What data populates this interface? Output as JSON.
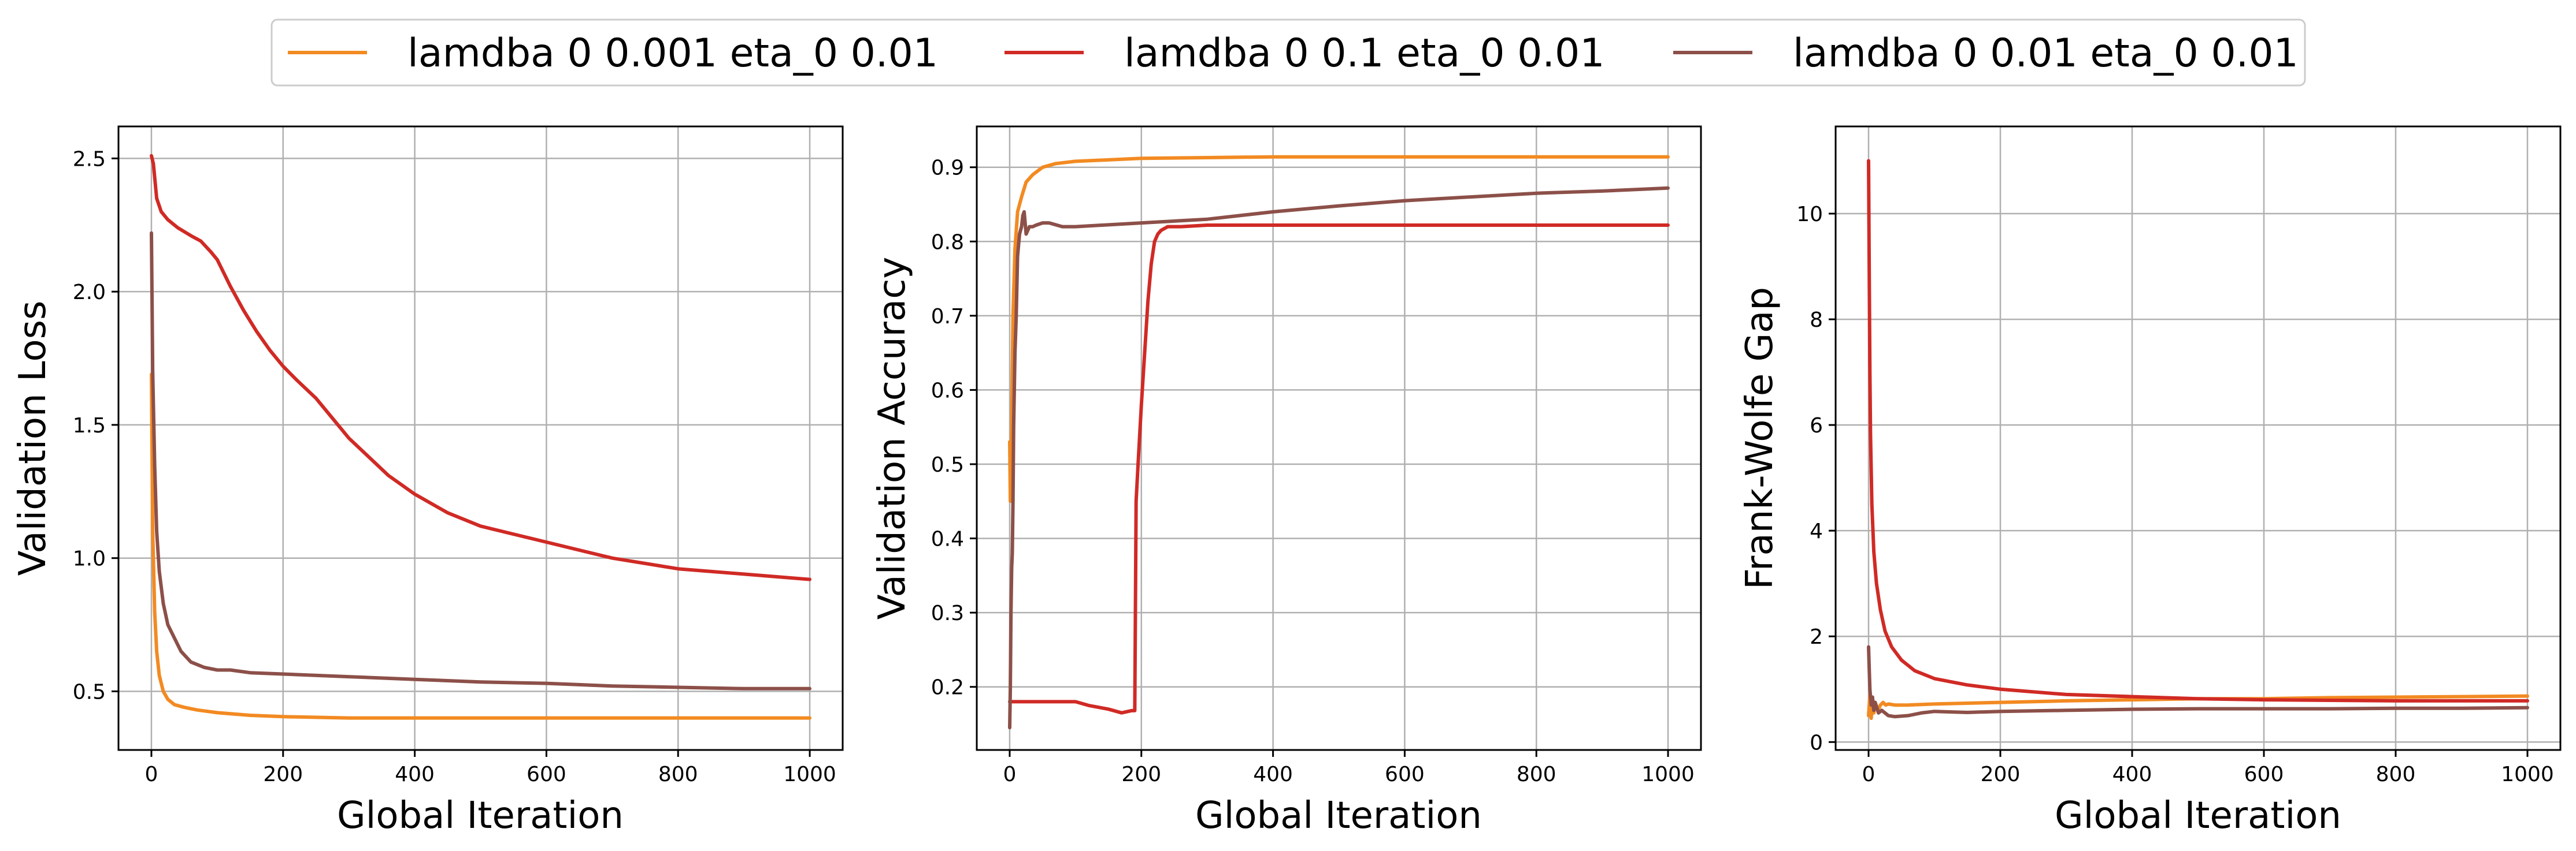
{
  "legend": {
    "placement": "top-center",
    "entries": [
      {
        "label": "lamdba 0 0.001 eta_0 0.01",
        "color": "#f28a22"
      },
      {
        "label": "lamdba 0 0.1 eta_0 0.01",
        "color": "#d02a25"
      },
      {
        "label": "lamdba 0 0.01 eta_0 0.01",
        "color": "#8c5049"
      }
    ]
  },
  "chart_data": [
    {
      "type": "line",
      "xlabel": "Global Iteration",
      "ylabel": "Validation Loss",
      "xlim": [
        -50,
        1050
      ],
      "ylim": [
        0.28,
        2.62
      ],
      "xticks": [
        0,
        200,
        400,
        600,
        800,
        1000
      ],
      "yticks": [
        0.5,
        1.0,
        1.5,
        2.0,
        2.5
      ],
      "xtick_labels": [
        "0",
        "200",
        "400",
        "600",
        "800",
        "1000"
      ],
      "ytick_labels": [
        "0.5",
        "1.0",
        "1.5",
        "2.0",
        "2.5"
      ],
      "grid": true,
      "series": [
        {
          "name": "lamdba 0 0.001 eta_0 0.01",
          "color": "#f28a22",
          "x": [
            0,
            2,
            5,
            8,
            12,
            18,
            25,
            35,
            50,
            70,
            100,
            150,
            200,
            300,
            400,
            500,
            600,
            700,
            800,
            900,
            1000
          ],
          "y": [
            1.69,
            1.1,
            0.8,
            0.65,
            0.56,
            0.5,
            0.47,
            0.45,
            0.44,
            0.43,
            0.42,
            0.41,
            0.405,
            0.4,
            0.4,
            0.4,
            0.4,
            0.4,
            0.4,
            0.4,
            0.4
          ]
        },
        {
          "name": "lamdba 0 0.1 eta_0 0.01",
          "color": "#d02a25",
          "x": [
            0,
            3,
            8,
            15,
            25,
            40,
            60,
            75,
            90,
            100,
            120,
            140,
            160,
            180,
            200,
            220,
            250,
            280,
            300,
            330,
            360,
            400,
            450,
            500,
            600,
            700,
            800,
            900,
            1000
          ],
          "y": [
            2.51,
            2.48,
            2.35,
            2.3,
            2.27,
            2.24,
            2.21,
            2.19,
            2.15,
            2.12,
            2.02,
            1.93,
            1.85,
            1.78,
            1.72,
            1.67,
            1.6,
            1.51,
            1.45,
            1.38,
            1.31,
            1.24,
            1.17,
            1.12,
            1.06,
            1.0,
            0.96,
            0.94,
            0.92
          ]
        },
        {
          "name": "lamdba 0 0.01 eta_0 0.01",
          "color": "#8c5049",
          "x": [
            0,
            2,
            5,
            8,
            12,
            18,
            25,
            35,
            45,
            60,
            80,
            100,
            120,
            150,
            200,
            300,
            400,
            500,
            600,
            700,
            800,
            900,
            1000
          ],
          "y": [
            2.22,
            1.7,
            1.35,
            1.1,
            0.95,
            0.83,
            0.75,
            0.7,
            0.65,
            0.61,
            0.59,
            0.58,
            0.58,
            0.57,
            0.565,
            0.555,
            0.545,
            0.535,
            0.53,
            0.52,
            0.515,
            0.51,
            0.51
          ]
        }
      ]
    },
    {
      "type": "line",
      "xlabel": "Global Iteration",
      "ylabel": "Validation Accuracy",
      "xlim": [
        -50,
        1050
      ],
      "ylim": [
        0.115,
        0.955
      ],
      "xticks": [
        0,
        200,
        400,
        600,
        800,
        1000
      ],
      "yticks": [
        0.2,
        0.3,
        0.4,
        0.5,
        0.6,
        0.7,
        0.8,
        0.9
      ],
      "xtick_labels": [
        "0",
        "200",
        "400",
        "600",
        "800",
        "1000"
      ],
      "ytick_labels": [
        "0.2",
        "0.3",
        "0.4",
        "0.5",
        "0.6",
        "0.7",
        "0.8",
        "0.9"
      ],
      "grid": true,
      "series": [
        {
          "name": "lamdba 0 0.001 eta_0 0.01",
          "color": "#f28a22",
          "x": [
            0,
            1,
            3,
            5,
            8,
            12,
            18,
            25,
            35,
            50,
            70,
            100,
            150,
            200,
            300,
            400,
            500,
            600,
            700,
            800,
            900,
            1000
          ],
          "y": [
            0.53,
            0.45,
            0.55,
            0.7,
            0.79,
            0.84,
            0.86,
            0.88,
            0.89,
            0.9,
            0.905,
            0.908,
            0.91,
            0.912,
            0.913,
            0.914,
            0.914,
            0.914,
            0.914,
            0.914,
            0.914,
            0.914
          ]
        },
        {
          "name": "lamdba 0 0.1 eta_0 0.01",
          "color": "#d02a25",
          "x": [
            0,
            2,
            5,
            10,
            20,
            50,
            80,
            100,
            120,
            150,
            170,
            185,
            190,
            192,
            195,
            200,
            205,
            210,
            215,
            220,
            225,
            230,
            240,
            260,
            300,
            400,
            600,
            800,
            1000
          ],
          "y": [
            0.18,
            0.18,
            0.18,
            0.18,
            0.18,
            0.18,
            0.18,
            0.18,
            0.175,
            0.17,
            0.165,
            0.168,
            0.168,
            0.45,
            0.5,
            0.58,
            0.65,
            0.72,
            0.77,
            0.8,
            0.81,
            0.815,
            0.82,
            0.82,
            0.822,
            0.822,
            0.822,
            0.822,
            0.822
          ]
        },
        {
          "name": "lamdba 0 0.01 eta_0 0.01",
          "color": "#8c5049",
          "x": [
            0,
            1,
            2,
            3,
            4,
            5,
            6,
            8,
            10,
            12,
            15,
            18,
            20,
            22,
            25,
            30,
            35,
            40,
            50,
            60,
            80,
            100,
            200,
            300,
            400,
            500,
            600,
            700,
            800,
            900,
            1000
          ],
          "y": [
            0.145,
            0.2,
            0.3,
            0.36,
            0.38,
            0.45,
            0.55,
            0.65,
            0.7,
            0.78,
            0.81,
            0.82,
            0.835,
            0.84,
            0.81,
            0.82,
            0.82,
            0.822,
            0.825,
            0.825,
            0.82,
            0.82,
            0.825,
            0.83,
            0.84,
            0.848,
            0.855,
            0.86,
            0.865,
            0.868,
            0.872
          ]
        }
      ]
    },
    {
      "type": "line",
      "xlabel": "Global Iteration",
      "ylabel": "Frank-Wolfe Gap",
      "xlim": [
        -50,
        1050
      ],
      "ylim": [
        -0.15,
        11.65
      ],
      "xticks": [
        0,
        200,
        400,
        600,
        800,
        1000
      ],
      "yticks": [
        0,
        2,
        4,
        6,
        8,
        10
      ],
      "xtick_labels": [
        "0",
        "200",
        "400",
        "600",
        "800",
        "1000"
      ],
      "ytick_labels": [
        "0",
        "2",
        "4",
        "6",
        "8",
        "10"
      ],
      "grid": true,
      "series": [
        {
          "name": "lamdba 0 0.001 eta_0 0.01",
          "color": "#f28a22",
          "x": [
            0,
            2,
            4,
            6,
            8,
            10,
            14,
            18,
            22,
            26,
            30,
            40,
            60,
            100,
            200,
            300,
            400,
            500,
            600,
            700,
            800,
            900,
            1000
          ],
          "y": [
            0.5,
            0.9,
            0.45,
            0.8,
            0.55,
            0.75,
            0.6,
            0.7,
            0.75,
            0.7,
            0.72,
            0.7,
            0.7,
            0.72,
            0.75,
            0.78,
            0.8,
            0.82,
            0.82,
            0.84,
            0.85,
            0.86,
            0.87
          ]
        },
        {
          "name": "lamdba 0 0.1 eta_0 0.01",
          "color": "#d02a25",
          "x": [
            0,
            1,
            2,
            3,
            5,
            8,
            12,
            18,
            25,
            35,
            50,
            70,
            100,
            150,
            200,
            300,
            400,
            500,
            600,
            700,
            800,
            900,
            1000
          ],
          "y": [
            11.0,
            9.0,
            7.0,
            5.8,
            4.5,
            3.6,
            3.0,
            2.5,
            2.1,
            1.8,
            1.55,
            1.35,
            1.2,
            1.08,
            1.0,
            0.9,
            0.86,
            0.82,
            0.8,
            0.79,
            0.78,
            0.78,
            0.78
          ]
        },
        {
          "name": "lamdba 0 0.01 eta_0 0.01",
          "color": "#8c5049",
          "x": [
            0,
            1,
            2,
            4,
            6,
            8,
            10,
            15,
            20,
            30,
            40,
            60,
            80,
            100,
            150,
            200,
            300,
            400,
            500,
            600,
            700,
            800,
            900,
            1000
          ],
          "y": [
            1.8,
            1.4,
            1.0,
            0.7,
            0.85,
            0.6,
            0.75,
            0.55,
            0.6,
            0.5,
            0.48,
            0.5,
            0.55,
            0.58,
            0.56,
            0.58,
            0.6,
            0.62,
            0.63,
            0.63,
            0.63,
            0.64,
            0.64,
            0.65
          ]
        }
      ]
    }
  ]
}
